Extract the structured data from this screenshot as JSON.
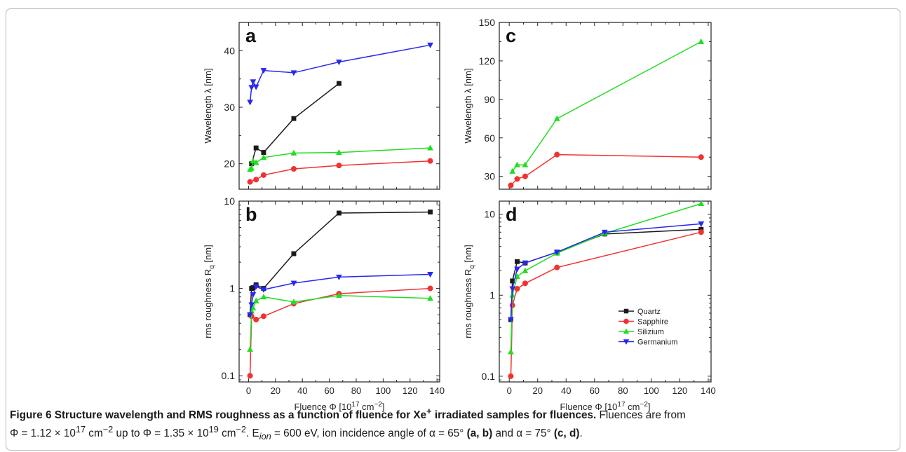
{
  "chart_data": [
    {
      "id": "a",
      "type": "line",
      "panel_label": "a",
      "ylabel": "Wavelength λ [nm]",
      "ylim": [
        15.5,
        45
      ],
      "yscale": "linear",
      "yticks": [
        20,
        30,
        40
      ],
      "xlim": [
        -7,
        142
      ],
      "series": [
        {
          "name": "Quartz",
          "color": "#1a1a1a",
          "marker": "square",
          "x": [
            2.24,
            5.6,
            11.2,
            33.6,
            67.2
          ],
          "y": [
            20,
            22.8,
            22,
            28,
            34.2
          ]
        },
        {
          "name": "Sapphire",
          "color": "#f03232",
          "marker": "circle",
          "x": [
            1.12,
            5.6,
            11.2,
            33.6,
            67.2,
            135
          ],
          "y": [
            16.8,
            17.2,
            18,
            19.1,
            19.7,
            20.5
          ]
        },
        {
          "name": "Silizium",
          "color": "#22dd22",
          "marker": "triangle-up",
          "x": [
            1.12,
            2.24,
            3.36,
            5.6,
            11.2,
            33.6,
            67.2,
            135
          ],
          "y": [
            19,
            19.2,
            20.5,
            20.2,
            21.1,
            21.9,
            22,
            22.8
          ]
        },
        {
          "name": "Germanium",
          "color": "#2828f0",
          "marker": "triangle-down",
          "x": [
            1.12,
            2.24,
            3.36,
            5.6,
            11.2,
            33.6,
            67.2,
            135
          ],
          "y": [
            30.9,
            33.5,
            34.5,
            33.6,
            36.5,
            36.1,
            38,
            41
          ]
        }
      ]
    },
    {
      "id": "b",
      "type": "line",
      "panel_label": "b",
      "ylabel": "rms roughness R",
      "ylabel_sub": "q",
      "ylabel_unit": " [nm]",
      "ylim": [
        0.085,
        10
      ],
      "yscale": "log",
      "yticks": [
        0.1,
        1,
        10
      ],
      "yticklabels": [
        "0.1",
        "1",
        "10"
      ],
      "xlim": [
        -7,
        142
      ],
      "xticks": [
        0,
        20,
        40,
        60,
        80,
        100,
        120,
        140
      ],
      "xlabel": "Fluence Φ [10",
      "xlabel_sup": "17",
      "xlabel_unit": " cm",
      "xlabel_sup2": "−2",
      "xlabel_end": "]",
      "series": [
        {
          "name": "Quartz",
          "color": "#1a1a1a",
          "marker": "square",
          "x": [
            1.12,
            2.24,
            3.36,
            5.6,
            11.2,
            33.6,
            67.2,
            135
          ],
          "y": [
            0.5,
            1.0,
            1.02,
            1.1,
            1.0,
            2.5,
            7.3,
            7.5
          ]
        },
        {
          "name": "Sapphire",
          "color": "#f03232",
          "marker": "circle",
          "x": [
            1.12,
            2.24,
            5.6,
            11.2,
            33.6,
            67.2,
            135
          ],
          "y": [
            0.1,
            0.48,
            0.44,
            0.48,
            0.67,
            0.87,
            1.0
          ]
        },
        {
          "name": "Silizium",
          "color": "#22dd22",
          "marker": "triangle-up",
          "x": [
            1.12,
            2.24,
            3.36,
            5.6,
            11.2,
            33.6,
            67.2,
            135
          ],
          "y": [
            0.2,
            0.55,
            0.6,
            0.72,
            0.8,
            0.7,
            0.83,
            0.77
          ]
        },
        {
          "name": "Germanium",
          "color": "#2828f0",
          "marker": "triangle-down",
          "x": [
            1.12,
            2.24,
            3.36,
            5.6,
            11.2,
            33.6,
            67.2,
            135
          ],
          "y": [
            0.5,
            0.65,
            0.85,
            1.05,
            0.97,
            1.15,
            1.35,
            1.45
          ]
        }
      ]
    },
    {
      "id": "c",
      "type": "line",
      "panel_label": "c",
      "ylabel": "Wavelength λ [nm]",
      "ylim": [
        20,
        150
      ],
      "yscale": "linear",
      "yticks": [
        30,
        60,
        90,
        120,
        150
      ],
      "xlim": [
        -7,
        142
      ],
      "series": [
        {
          "name": "Sapphire",
          "color": "#f03232",
          "marker": "circle",
          "x": [
            1.12,
            5.6,
            11.2,
            33.6,
            135
          ],
          "y": [
            23,
            28,
            30,
            47,
            45
          ]
        },
        {
          "name": "Silizium",
          "color": "#22dd22",
          "marker": "triangle-up",
          "x": [
            2.24,
            5.6,
            11.2,
            33.6,
            135
          ],
          "y": [
            34,
            39,
            39,
            75,
            135
          ]
        }
      ]
    },
    {
      "id": "d",
      "type": "line",
      "panel_label": "d",
      "ylabel": "rms roughness R",
      "ylabel_sub": "q",
      "ylabel_unit": " [nm]",
      "ylim": [
        0.085,
        14.5
      ],
      "yscale": "log",
      "yticks": [
        0.1,
        1,
        10
      ],
      "yticklabels": [
        "0.1",
        "1",
        "10"
      ],
      "xlim": [
        -7,
        142
      ],
      "xticks": [
        0,
        20,
        40,
        60,
        80,
        100,
        120,
        140
      ],
      "xlabel": "Fluence Φ [10",
      "xlabel_sup": "17",
      "xlabel_unit": " cm",
      "xlabel_sup2": "−2",
      "xlabel_end": "]",
      "legend_position": "bottom-right",
      "series": [
        {
          "name": "Quartz",
          "color": "#1a1a1a",
          "marker": "square",
          "x": [
            1.12,
            2.24,
            5.6,
            11.2,
            33.6,
            67.2,
            135
          ],
          "y": [
            0.5,
            1.5,
            2.6,
            2.5,
            3.4,
            5.7,
            6.5
          ]
        },
        {
          "name": "Sapphire",
          "color": "#f03232",
          "marker": "circle",
          "x": [
            1.12,
            2.24,
            5.6,
            11.2,
            33.6,
            135
          ],
          "y": [
            0.1,
            0.75,
            1.2,
            1.4,
            2.2,
            6.0
          ]
        },
        {
          "name": "Silizium",
          "color": "#22dd22",
          "marker": "triangle-up",
          "x": [
            1.12,
            2.24,
            5.6,
            11.2,
            33.6,
            67.2,
            135
          ],
          "y": [
            0.2,
            1.0,
            1.7,
            2.0,
            3.3,
            5.8,
            13.5
          ]
        },
        {
          "name": "Germanium",
          "color": "#2828f0",
          "marker": "triangle-down",
          "x": [
            1.12,
            2.24,
            5.6,
            11.2,
            33.6,
            67.2,
            135
          ],
          "y": [
            0.5,
            1.2,
            2.1,
            2.5,
            3.4,
            6.0,
            7.6
          ]
        }
      ]
    }
  ],
  "legend": {
    "entries": [
      {
        "name": "Quartz",
        "color": "#1a1a1a",
        "marker": "square"
      },
      {
        "name": "Sapphire",
        "color": "#f03232",
        "marker": "circle"
      },
      {
        "name": "Silizium",
        "color": "#22dd22",
        "marker": "triangle-up"
      },
      {
        "name": "Germanium",
        "color": "#2828f0",
        "marker": "triangle-down"
      }
    ]
  },
  "caption": {
    "head": "Figure 6 Structure wavelength and RMS roughness as a function of fluence for Xe",
    "head_sup": "+",
    "head_end": " irradiated samples for fluences.",
    "line1": " Fluences are from",
    "phi1_pre": "Φ = 1.12 × 10",
    "phi1_sup": "17",
    "phi1_unit": " cm",
    "phi1_unit_sup": "−2",
    "phi2_pre": " up to Φ = 1.35 × 10",
    "phi2_sup": "19",
    "phi2_unit": " cm",
    "phi2_unit_sup": "−2",
    "eion_pre": ". E",
    "eion_sub": "ion",
    "eion_val": " = 600 eV, ion incidence angle of α = 65° ",
    "ab": "(a, b)",
    "mid": " and α = 75° ",
    "cd": "(c, d)",
    "end": "."
  }
}
